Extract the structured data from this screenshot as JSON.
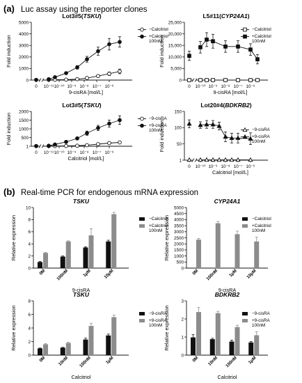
{
  "sections": [
    {
      "letter": "(a)",
      "heading": "Luc assay using the reporter clones"
    },
    {
      "letter": "(b)",
      "heading": "Real-time PCR for endogenous mRNA expression"
    }
  ],
  "chart_data": [
    {
      "type": "line",
      "title_plain": "Lot3#5(",
      "title_ital": "TSKU",
      "title_close": ")",
      "xlabel": "9-cisRA [mol/L]",
      "ylabel": "Fold induction",
      "x_ticks": [
        "0",
        "10⁻¹¹",
        "10⁻¹⁰",
        "10⁻⁹",
        "10⁻⁸",
        "10⁻⁷",
        "10⁻⁶"
      ],
      "ylim": [
        0,
        5000
      ],
      "y_ticks": [
        "0",
        "1000",
        "2000",
        "3000",
        "4000",
        "5000"
      ],
      "y_tick_values": [
        0,
        1000,
        2000,
        3000,
        4000,
        5000
      ],
      "series": [
        {
          "name": "−Calcitriol",
          "marker": "open-circle",
          "y": [
            20,
            25,
            30,
            40,
            80,
            180,
            350,
            550,
            750
          ],
          "err": [
            20,
            20,
            20,
            20,
            30,
            60,
            100,
            150,
            200
          ]
        },
        {
          "name": "+Calcitriol 100nM",
          "marker": "filled-circle",
          "y": [
            20,
            80,
            250,
            600,
            1100,
            1800,
            2500,
            3100,
            3300
          ],
          "err": [
            20,
            30,
            60,
            100,
            150,
            250,
            350,
            500,
            450
          ]
        }
      ]
    },
    {
      "type": "line",
      "title_plain": "L5#11(",
      "title_ital": "CYP24A1",
      "title_close": ")",
      "xlabel": "9-cisRA [mol/L]",
      "ylabel": "Fold induction",
      "x_ticks": [
        "0",
        "10⁻¹⁰",
        "10⁻⁹",
        "10⁻⁸",
        "10⁻⁷",
        "10⁻⁶"
      ],
      "ylim": [
        0,
        25000
      ],
      "y_ticks": [
        "0",
        "5,000",
        "10,000",
        "15,000",
        "20,000",
        "25,000"
      ],
      "y_tick_values": [
        0,
        5000,
        10000,
        15000,
        20000,
        25000
      ],
      "series": [
        {
          "name": "−Calcitriol",
          "marker": "open-square",
          "y": [
            0,
            0,
            0,
            0,
            0,
            0,
            0,
            0
          ],
          "err": [
            0,
            0,
            0,
            0,
            0,
            0,
            0,
            0
          ]
        },
        {
          "name": "+Calcitriol 100nM",
          "marker": "filled-square",
          "y": [
            10500,
            14200,
            17500,
            16800,
            14500,
            14500,
            13200,
            9000
          ],
          "err": [
            2000,
            2500,
            3000,
            3000,
            2500,
            2500,
            2500,
            2000
          ]
        }
      ]
    },
    {
      "type": "line",
      "title_plain": "Lot3#5(",
      "title_ital": "TSKU",
      "title_close": ")",
      "xlabel": "Calcitriol [mol/L]",
      "ylabel": "Fold induction",
      "x_ticks": [
        "0",
        "10⁻¹¹",
        "10⁻¹⁰",
        "10⁻⁹",
        "10⁻⁸",
        "10⁻⁷",
        "10⁻⁶"
      ],
      "ylim": [
        0,
        2000
      ],
      "y_ticks": [
        "1",
        "500",
        "1000",
        "1500",
        "2000"
      ],
      "y_tick_values": [
        0,
        500,
        1000,
        1500,
        2000
      ],
      "series": [
        {
          "name": "−9-cisRA",
          "marker": "open-circle",
          "y": [
            10,
            10,
            12,
            15,
            30,
            60,
            120,
            180,
            220
          ],
          "err": [
            10,
            10,
            10,
            10,
            10,
            15,
            20,
            30,
            40
          ]
        },
        {
          "name": "+9-cisRA 100nM",
          "marker": "filled-circle",
          "y": [
            10,
            30,
            100,
            250,
            450,
            750,
            1050,
            1300,
            1500
          ],
          "err": [
            10,
            20,
            30,
            50,
            80,
            120,
            150,
            200,
            250
          ]
        }
      ]
    },
    {
      "type": "line",
      "title_plain": "Lot20#4(",
      "title_ital": "BDKRB2",
      "title_close": ")",
      "xlabel": "Calcitriol [mol/L]",
      "ylabel": "Fold induction",
      "x_ticks": [
        "0",
        "10⁻¹⁰",
        "10⁻⁹",
        "10⁻⁸",
        "10⁻⁷",
        "10⁻⁶"
      ],
      "ylim": [
        0,
        150
      ],
      "y_ticks": [
        "1",
        "50",
        "100",
        "150"
      ],
      "y_tick_values": [
        0,
        50,
        100,
        150
      ],
      "series": [
        {
          "name": "−9-cisRA",
          "marker": "open-triangle",
          "y": [
            1,
            1,
            1,
            1,
            1,
            1,
            1,
            1,
            1
          ],
          "err": [
            0,
            0,
            0,
            0,
            0,
            0,
            0,
            0,
            0
          ]
        },
        {
          "name": "+9-cisRA 100nM",
          "marker": "filled-triangle",
          "y": [
            112,
            108,
            110,
            110,
            105,
            72,
            68,
            68,
            66
          ],
          "err": [
            12,
            10,
            12,
            12,
            12,
            15,
            15,
            15,
            18
          ]
        }
      ]
    },
    {
      "type": "bar",
      "title_ital": "TSKU",
      "xlabel": "9-cisRA",
      "ylabel": "Relative expression",
      "categories": [
        "0M",
        "100nM",
        "1μM",
        "10μM"
      ],
      "ylim": [
        0,
        10
      ],
      "y_ticks": [
        "0",
        "2",
        "4",
        "6",
        "8",
        "10"
      ],
      "y_tick_values": [
        0,
        2,
        4,
        6,
        8,
        10
      ],
      "series": [
        {
          "name": "−Calcitriol",
          "color": "#111111",
          "values": [
            1.0,
            1.9,
            3.4,
            4.4
          ],
          "err": [
            0.1,
            0.1,
            0.1,
            0.2
          ]
        },
        {
          "name": "+Calcitriol 100nM",
          "color": "#8c8c8c",
          "values": [
            2.5,
            4.4,
            5.4,
            8.9
          ],
          "err": [
            0.1,
            0.1,
            1.1,
            0.3
          ]
        }
      ]
    },
    {
      "type": "bar",
      "title_ital": "CYP24A1",
      "xlabel": "9-cisRA",
      "ylabel": "Relative expression",
      "categories": [
        "0M",
        "100nM",
        "1μM",
        "10μM"
      ],
      "ylim": [
        0,
        5000
      ],
      "y_ticks": [
        "0",
        "500",
        "1000",
        "1500",
        "2000",
        "2500",
        "3000",
        "3500",
        "4000",
        "4500",
        "5000"
      ],
      "y_tick_values": [
        0,
        500,
        1000,
        1500,
        2000,
        2500,
        3000,
        3500,
        4000,
        4500,
        5000
      ],
      "series": [
        {
          "name": "−Calcitriol",
          "color": "#111111",
          "values": [
            0,
            0,
            0,
            0
          ],
          "err": [
            0,
            0,
            0,
            0
          ]
        },
        {
          "name": "+Calcitriol 100nM",
          "color": "#8c8c8c",
          "values": [
            2350,
            3700,
            2800,
            2200
          ],
          "err": [
            100,
            150,
            250,
            350
          ]
        }
      ]
    },
    {
      "type": "bar",
      "title_ital": "TSKU",
      "xlabel": "Calcitriol",
      "ylabel": "Relative expression",
      "categories": [
        "0M",
        "10nM",
        "100nM",
        "1μM"
      ],
      "ylim": [
        0,
        8
      ],
      "y_ticks": [
        "0",
        "2",
        "4",
        "6",
        "8"
      ],
      "y_tick_values": [
        0,
        2,
        4,
        6,
        8
      ],
      "series": [
        {
          "name": "−9-cisRA",
          "color": "#111111",
          "values": [
            1.0,
            1.1,
            2.3,
            2.9
          ],
          "err": [
            0.05,
            0.05,
            0.2,
            0.2
          ]
        },
        {
          "name": "+9-cisRA 100nM",
          "color": "#8c8c8c",
          "values": [
            1.6,
            1.8,
            4.3,
            5.6
          ],
          "err": [
            0.1,
            0.1,
            0.4,
            0.3
          ]
        }
      ]
    },
    {
      "type": "bar",
      "title_ital": "BDKRB2",
      "xlabel": "Calcitriol",
      "ylabel": "Relative expression",
      "categories": [
        "0M",
        "10nM",
        "100nM",
        "1μM"
      ],
      "ylim": [
        0,
        3
      ],
      "y_ticks": [
        "0",
        "1",
        "2",
        "3"
      ],
      "y_tick_values": [
        0,
        1,
        2,
        3
      ],
      "series": [
        {
          "name": "−9-cisRA",
          "color": "#111111",
          "values": [
            0.98,
            0.88,
            0.75,
            0.7
          ],
          "err": [
            0.15,
            0.05,
            0.08,
            0.05
          ]
        },
        {
          "name": "+9-cisRA 100nM",
          "color": "#8c8c8c",
          "values": [
            2.38,
            2.32,
            1.55,
            1.1
          ],
          "err": [
            0.25,
            0.1,
            0.1,
            0.2
          ]
        }
      ]
    }
  ]
}
